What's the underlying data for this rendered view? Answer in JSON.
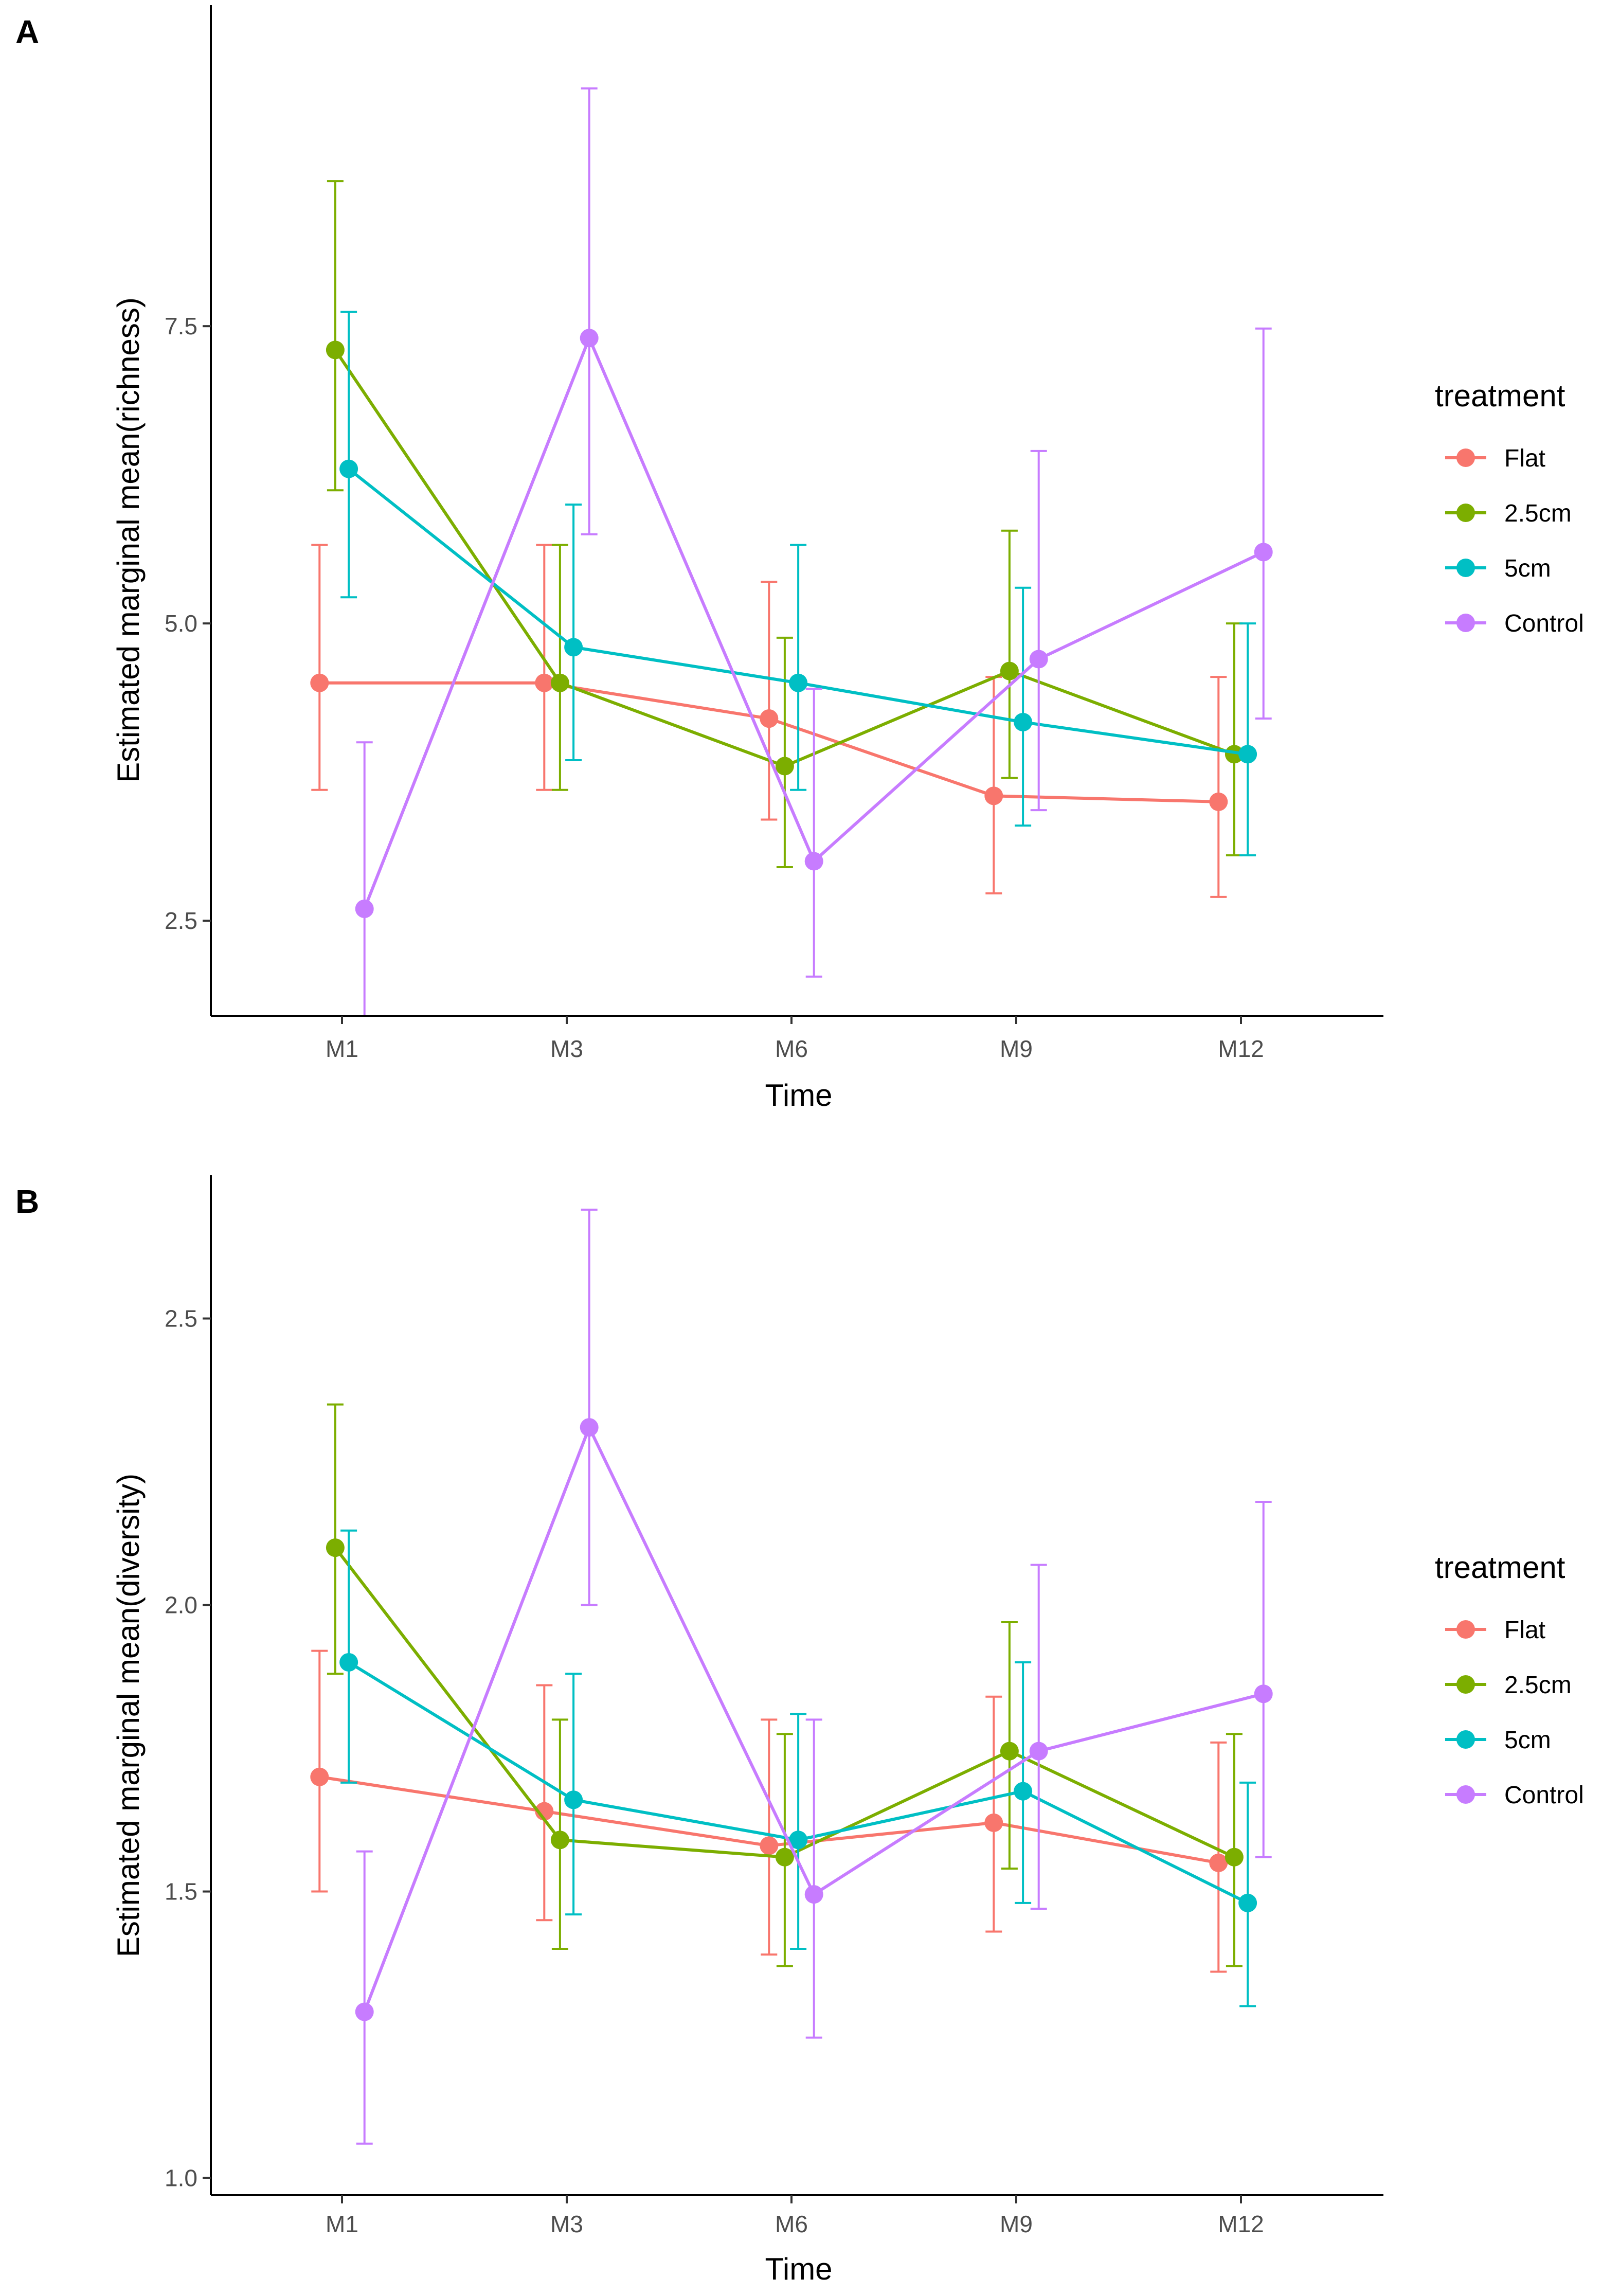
{
  "chart_data": [
    {
      "panel": "A",
      "type": "line",
      "xlabel": "Time",
      "ylabel": "Estimated marginal mean(richness)",
      "categories": [
        "M1",
        "M3",
        "M6",
        "M9",
        "M12"
      ],
      "ylim": [
        1.7,
        10.2
      ],
      "yticks": [
        2.5,
        5.0,
        7.5
      ],
      "ytick_labels": [
        "2.5",
        "5.0",
        "7.5"
      ],
      "legend_title": "treatment",
      "series": [
        {
          "name": "Flat",
          "color": "#F8766D",
          "values": [
            4.5,
            4.5,
            4.2,
            3.55,
            3.5
          ],
          "lower": [
            3.6,
            3.6,
            3.35,
            2.73,
            2.7
          ],
          "upper": [
            5.66,
            5.66,
            5.35,
            4.55,
            4.55
          ]
        },
        {
          "name": "2.5cm",
          "color": "#7CAE00",
          "values": [
            7.3,
            4.5,
            3.8,
            4.6,
            3.9
          ],
          "lower": [
            6.12,
            3.6,
            2.95,
            3.7,
            3.05
          ],
          "upper": [
            8.72,
            5.66,
            4.88,
            5.78,
            5.0
          ]
        },
        {
          "name": "5cm",
          "color": "#00BFC4",
          "values": [
            6.3,
            4.8,
            4.5,
            4.17,
            3.9
          ],
          "lower": [
            5.22,
            3.85,
            3.6,
            3.3,
            3.05
          ],
          "upper": [
            7.62,
            6.0,
            5.66,
            5.3,
            5.0
          ]
        },
        {
          "name": "Control",
          "color": "#C77CFF",
          "values": [
            2.6,
            7.4,
            3.0,
            4.7,
            5.6
          ],
          "lower": [
            1.7,
            5.75,
            2.03,
            3.43,
            4.2
          ],
          "upper": [
            4.0,
            9.5,
            4.45,
            6.45,
            7.48
          ]
        }
      ]
    },
    {
      "panel": "B",
      "type": "line",
      "xlabel": "Time",
      "ylabel": "Estimated marginal mean(diversity)",
      "categories": [
        "M1",
        "M3",
        "M6",
        "M9",
        "M12"
      ],
      "ylim": [
        0.97,
        2.75
      ],
      "yticks": [
        1.0,
        1.5,
        2.0,
        2.5
      ],
      "ytick_labels": [
        "1.0",
        "1.5",
        "2.0",
        "2.5"
      ],
      "legend_title": "treatment",
      "series": [
        {
          "name": "Flat",
          "color": "#F8766D",
          "values": [
            1.7,
            1.64,
            1.58,
            1.62,
            1.55
          ],
          "lower": [
            1.5,
            1.45,
            1.39,
            1.43,
            1.36
          ],
          "upper": [
            1.92,
            1.86,
            1.8,
            1.84,
            1.76
          ]
        },
        {
          "name": "2.5cm",
          "color": "#7CAE00",
          "values": [
            2.1,
            1.59,
            1.56,
            1.745,
            1.56
          ],
          "lower": [
            1.88,
            1.4,
            1.37,
            1.54,
            1.37
          ],
          "upper": [
            2.35,
            1.8,
            1.775,
            1.97,
            1.775
          ]
        },
        {
          "name": "5cm",
          "color": "#00BFC4",
          "values": [
            1.9,
            1.66,
            1.59,
            1.675,
            1.48
          ],
          "lower": [
            1.69,
            1.46,
            1.4,
            1.48,
            1.3
          ],
          "upper": [
            2.13,
            1.88,
            1.81,
            1.9,
            1.69
          ]
        },
        {
          "name": "Control",
          "color": "#C77CFF",
          "values": [
            1.29,
            2.31,
            1.495,
            1.745,
            1.845
          ],
          "lower": [
            1.06,
            2.0,
            1.245,
            1.47,
            1.56
          ],
          "upper": [
            1.57,
            2.69,
            1.8,
            2.07,
            2.18
          ]
        }
      ]
    }
  ]
}
